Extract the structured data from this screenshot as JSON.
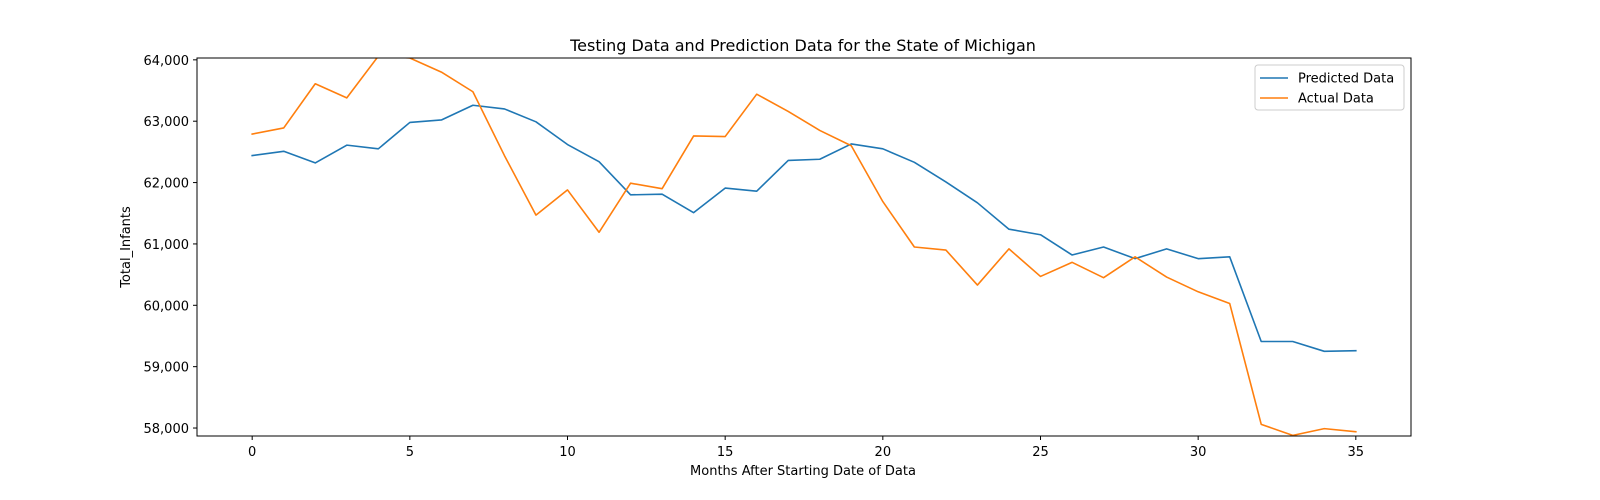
{
  "chart_data": {
    "type": "line",
    "title": "Testing Data and Prediction Data for the State of Michigan",
    "xlabel": "Months After Starting Date of Data",
    "ylabel": "Total_Infants",
    "xlim": [
      -1.75,
      36.75
    ],
    "ylim": [
      57870,
      64030
    ],
    "x_ticks": [
      0,
      5,
      10,
      15,
      20,
      25,
      30,
      35
    ],
    "x_tick_labels": [
      "0",
      "5",
      "10",
      "15",
      "20",
      "25",
      "30",
      "35"
    ],
    "y_ticks": [
      58000,
      59000,
      60000,
      61000,
      62000,
      63000,
      64000
    ],
    "y_tick_labels": [
      "58,000",
      "59,000",
      "60,000",
      "61,000",
      "62,000",
      "63,000",
      "64,000"
    ],
    "grid": false,
    "legend_position": "top-right",
    "x": [
      0,
      1,
      2,
      3,
      4,
      5,
      6,
      7,
      8,
      9,
      10,
      11,
      12,
      13,
      14,
      15,
      16,
      17,
      18,
      19,
      20,
      21,
      22,
      23,
      24,
      25,
      26,
      27,
      28,
      29,
      30,
      31,
      32,
      33,
      34,
      35
    ],
    "series": [
      {
        "name": "Predicted Data",
        "color": "#1f77b4",
        "values": [
          62440,
          62510,
          62320,
          62610,
          62550,
          62980,
          63020,
          63260,
          63200,
          62990,
          62620,
          62340,
          61800,
          61810,
          61510,
          61910,
          61860,
          62360,
          62380,
          62630,
          62550,
          62330,
          62010,
          61670,
          61240,
          61150,
          60820,
          60950,
          60760,
          60920,
          60760,
          60790,
          59410,
          59410,
          59250,
          59260
        ]
      },
      {
        "name": "Actual Data",
        "color": "#ff7f0e",
        "values": [
          62790,
          62890,
          63610,
          63380,
          64060,
          64030,
          63800,
          63480,
          62440,
          61470,
          61880,
          61190,
          61990,
          61900,
          62760,
          62750,
          63440,
          63160,
          62850,
          62600,
          61690,
          60950,
          60900,
          60330,
          60920,
          60470,
          60700,
          60450,
          60790,
          60460,
          60220,
          60030,
          58060,
          57880,
          57990,
          57940
        ]
      }
    ]
  }
}
